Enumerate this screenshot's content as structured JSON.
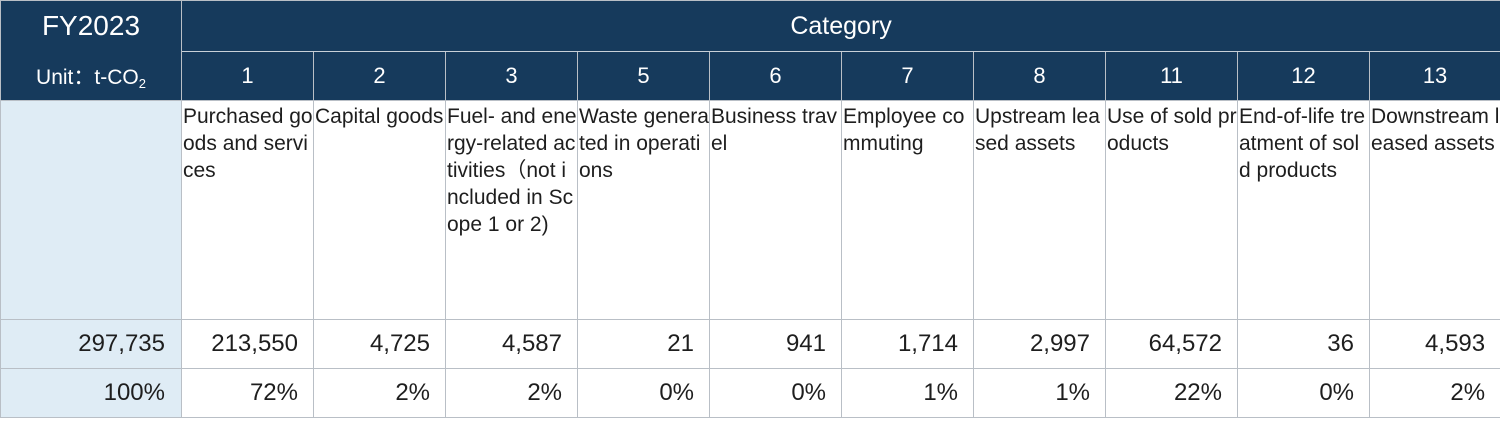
{
  "header": {
    "fiscal_year": "FY2023",
    "unit_label": "Unit：t-CO",
    "unit_subscript": "2",
    "category_title": "Category"
  },
  "categories": [
    {
      "number": "1",
      "name": "Purchased goods and services",
      "emissions": "213,550",
      "share": "72%"
    },
    {
      "number": "2",
      "name": "Capital goods",
      "emissions": "4,725",
      "share": "2%"
    },
    {
      "number": "3",
      "name": "Fuel- and energy-related activities（not included in Scope 1 or 2)",
      "emissions": "4,587",
      "share": "2%"
    },
    {
      "number": "5",
      "name": "Waste generated in operations",
      "emissions": "21",
      "share": "0%"
    },
    {
      "number": "6",
      "name": "Business travel",
      "emissions": "941",
      "share": "0%"
    },
    {
      "number": "7",
      "name": "Employee commuting",
      "emissions": "1,714",
      "share": "1%"
    },
    {
      "number": "8",
      "name": "Upstream leased assets",
      "emissions": "2,997",
      "share": "1%"
    },
    {
      "number": "11",
      "name": "Use of sold products",
      "emissions": "64,572",
      "share": "22%"
    },
    {
      "number": "12",
      "name": "End-of-life treatment of sold products",
      "emissions": "36",
      "share": "0%"
    },
    {
      "number": "13",
      "name": "Downstream leased assets",
      "emissions": "4,593",
      "share": "2%"
    }
  ],
  "total": {
    "emissions": "297,735",
    "share": "100%"
  },
  "colors": {
    "header_bg": "#163a5c",
    "header_text": "#ffffff",
    "total_column_bg": "#dfecf5",
    "border": "#b9bfc6"
  }
}
